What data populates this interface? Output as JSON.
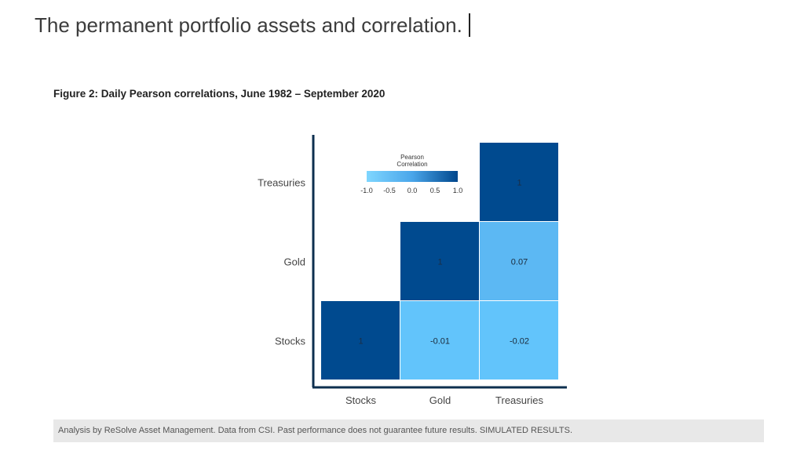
{
  "heading": "The permanent portfolio assets and correlation.",
  "figure_title": "Figure 2: Daily Pearson correlations, June 1982 – September 2020",
  "footnote": "Analysis by ReSolve Asset Management. Data from CSI. Past performance does not guarantee future results. SIMULATED RESULTS.",
  "chart_data": {
    "type": "heatmap",
    "title": "Figure 2: Daily Pearson correlations, June 1982 – September 2020",
    "x_categories": [
      "Stocks",
      "Gold",
      "Treasuries"
    ],
    "y_categories": [
      "Stocks",
      "Gold",
      "Treasuries"
    ],
    "cells": [
      {
        "x": "Stocks",
        "y": "Stocks",
        "value": 1,
        "label": "1"
      },
      {
        "x": "Gold",
        "y": "Stocks",
        "value": -0.01,
        "label": "-0.01"
      },
      {
        "x": "Treasuries",
        "y": "Stocks",
        "value": -0.02,
        "label": "-0.02"
      },
      {
        "x": "Gold",
        "y": "Gold",
        "value": 1,
        "label": "1"
      },
      {
        "x": "Treasuries",
        "y": "Gold",
        "value": 0.07,
        "label": "0.07"
      },
      {
        "x": "Treasuries",
        "y": "Treasuries",
        "value": 1,
        "label": "1"
      }
    ],
    "legend": {
      "title_line1": "Pearson",
      "title_line2": "Correlation",
      "ticks": [
        "-1.0",
        "-0.5",
        "0.0",
        "0.5",
        "1.0"
      ],
      "range": [
        -1.0,
        1.0
      ],
      "placement": "top-left"
    },
    "colors": {
      "low": "#73d2ff",
      "mid": "#4fa8ea",
      "high": "#00468c",
      "cell_one": "#004a8f",
      "cell_near_zero": "#62c4fb",
      "cell_small_pos": "#5cb8f3"
    }
  }
}
